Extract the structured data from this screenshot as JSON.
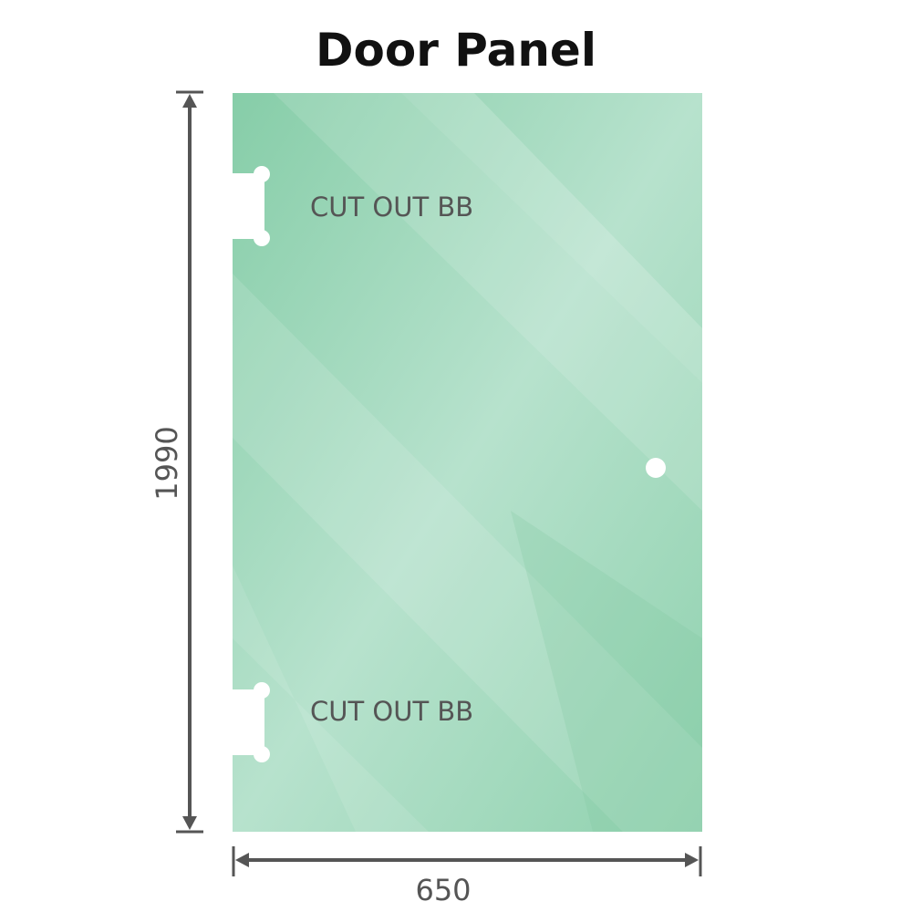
{
  "title": "Door Panel",
  "panel": {
    "cutout_labels": [
      "CUT OUT BB",
      "CUT OUT BB"
    ],
    "glass_color": "#8fd1ae",
    "highlight_color": "#bde5d2"
  },
  "dimensions": {
    "height": "1990",
    "width": "650",
    "line_color": "#555555"
  }
}
